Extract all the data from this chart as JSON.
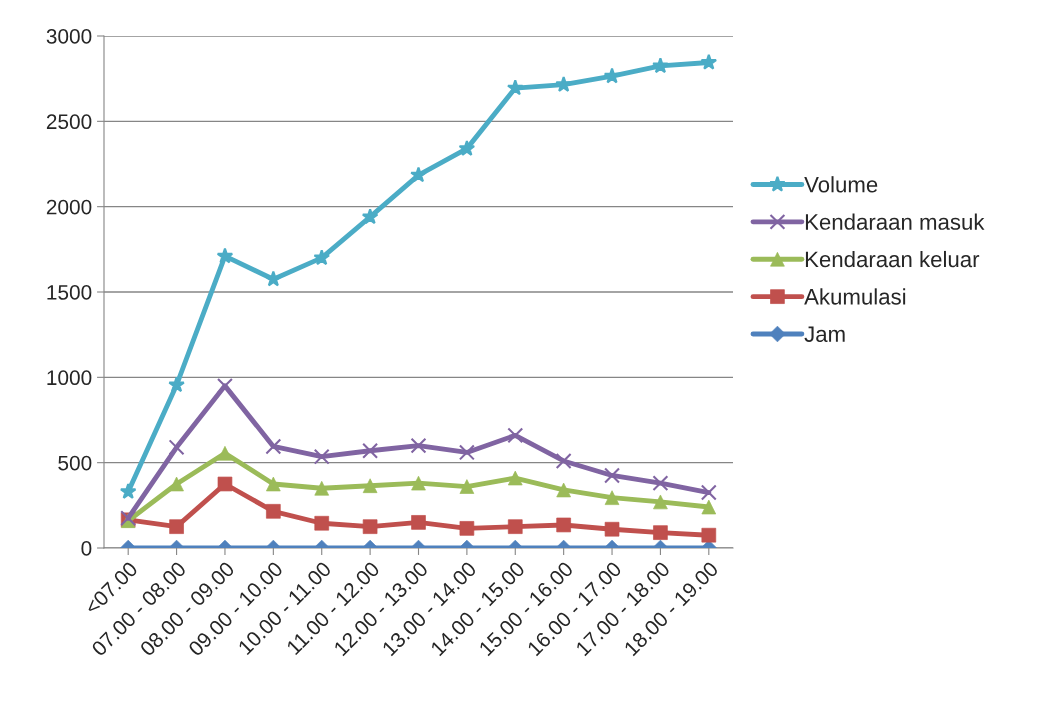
{
  "chart_data": {
    "type": "line",
    "categories": [
      "<07.00",
      "07.00 - 08.00",
      "08.00 - 09.00",
      "09.00 - 10.00",
      "10.00 - 11.00",
      "11.00 - 12.00",
      "12.00 - 13.00",
      "13.00 - 14.00",
      "14.00 - 15.00",
      "15.00 - 16.00",
      "16.00 - 17.00",
      "17.00 - 18.00",
      "18.00 - 19.00"
    ],
    "series": [
      {
        "name": "Volume",
        "color": "#4bacc6",
        "marker": "star",
        "values": [
          330,
          955,
          1710,
          1575,
          1700,
          1940,
          2185,
          2340,
          2695,
          2715,
          2765,
          2825,
          2845
        ]
      },
      {
        "name": "Kendaraan masuk",
        "color": "#8064a2",
        "marker": "cross",
        "values": [
          175,
          590,
          950,
          595,
          535,
          570,
          600,
          560,
          660,
          510,
          425,
          380,
          325
        ]
      },
      {
        "name": "Kendaraan keluar",
        "color": "#9bbb59",
        "marker": "triangle",
        "values": [
          160,
          375,
          555,
          375,
          350,
          365,
          380,
          360,
          410,
          340,
          295,
          270,
          240
        ]
      },
      {
        "name": "Akumulasi",
        "color": "#c0504d",
        "marker": "square",
        "values": [
          165,
          125,
          375,
          215,
          145,
          125,
          150,
          115,
          125,
          135,
          110,
          90,
          75
        ]
      },
      {
        "name": "Jam",
        "color": "#4f81bd",
        "marker": "diamond",
        "values": [
          0,
          0,
          0,
          0,
          0,
          0,
          0,
          0,
          0,
          0,
          0,
          0,
          0
        ]
      }
    ],
    "ylim": [
      0,
      3000
    ],
    "yticks": [
      0,
      500,
      1000,
      1500,
      2000,
      2500,
      3000
    ],
    "grid": "y",
    "legend": "right",
    "line_style": "solid"
  }
}
